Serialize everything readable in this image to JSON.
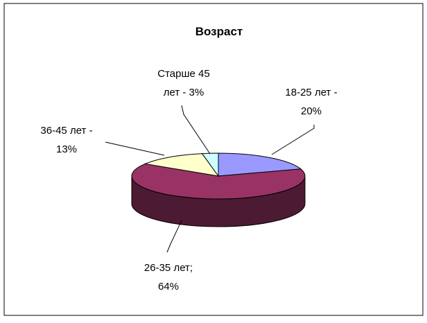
{
  "chart_data": {
    "type": "pie3d",
    "title": "Возраст",
    "values": [
      20,
      64,
      13,
      3
    ],
    "value_labels": [
      "18-25 лет - 20%",
      "26-35 лет; 64%",
      "36-45 лет - 13%",
      "Старше 45 лет - 3%"
    ],
    "colors": [
      "#9999ff",
      "#993366",
      "#ffffcc",
      "#ccffff"
    ],
    "side_colors": [
      "#4d4d80",
      "#4d1a33",
      "#80805f",
      "#608080"
    ]
  }
}
